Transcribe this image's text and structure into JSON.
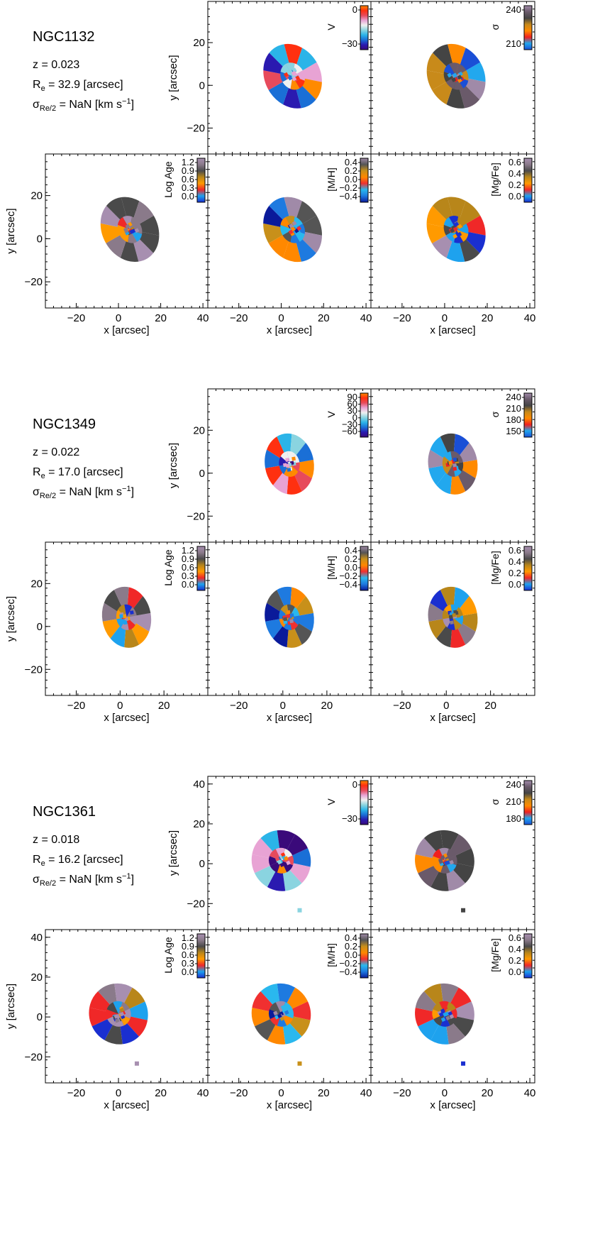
{
  "colors": {
    "frame": "#000000",
    "background": "#ffffff"
  },
  "colorbar_palettes": {
    "v": [
      "#3a0a7a",
      "#2a1ab0",
      "#1a6fd6",
      "#2bb4e8",
      "#8ad4e0",
      "#f0f0f0",
      "#e8a3d4",
      "#e74a5c",
      "#ff3010",
      "#ff8a00"
    ],
    "sigma": [
      "#1a4fd6",
      "#22a8ee",
      "#f02020",
      "#ff8a00",
      "#c88a1a",
      "#444444",
      "#6a5a6a",
      "#a08aa8"
    ],
    "age": [
      "#1a2fd0",
      "#1ea2ee",
      "#f02828",
      "#ff9a00",
      "#b8861a",
      "#4a4a4a",
      "#8a7a8a",
      "#a78fb0"
    ],
    "mh": [
      "#0a1a9a",
      "#1e7ae0",
      "#2ab8ee",
      "#f03030",
      "#ff8800",
      "#c8901a",
      "#555555",
      "#a08aa8"
    ],
    "mgfe": [
      "#1a2fd0",
      "#1ea2ee",
      "#f02828",
      "#ff9a00",
      "#b8861a",
      "#4a4a4a",
      "#8a7a8a",
      "#a78fb0"
    ]
  },
  "galaxies": [
    {
      "name": "NGC1132",
      "z": "z = 0.023",
      "re": "R",
      "re_sub": "e",
      "re_rest": " = 32.9 [arcsec]",
      "sigma": "σ",
      "sigma_sub": "Re/2",
      "sigma_rest": " = NaN [km s",
      "sigma_sup": "−1",
      "sigma_end": "]",
      "y_ticks": [
        "20",
        "0",
        "−20"
      ],
      "x_ticks": [
        "−20",
        "0",
        "20",
        "40"
      ],
      "x_label": "x [arcsec]",
      "y_label": "y [arcsec]",
      "cb": {
        "v": {
          "label": "V",
          "ticks": [
            "0",
            "−30"
          ]
        },
        "sigma": {
          "label": "σ",
          "ticks": [
            "240",
            "210"
          ]
        },
        "age": {
          "label": "Log Age",
          "ticks": [
            "1.2",
            "0.9",
            "0.6",
            "0.3",
            "0.0"
          ]
        },
        "mh": {
          "label": "[M/H]",
          "ticks": [
            "0.4",
            "0.2",
            "0.0",
            "−0.2",
            "−0.4"
          ]
        },
        "mgfe": {
          "label": "[Mg/Fe]",
          "ticks": [
            "0.6",
            "0.4",
            "0.2",
            "0.0"
          ]
        }
      }
    },
    {
      "name": "NGC1349",
      "z": "z = 0.022",
      "re": "R",
      "re_sub": "e",
      "re_rest": " = 17.0 [arcsec]",
      "sigma": "σ",
      "sigma_sub": "Re/2",
      "sigma_rest": " = NaN [km s",
      "sigma_sup": "−1",
      "sigma_end": "]",
      "y_ticks": [
        "20",
        "0",
        "−20"
      ],
      "x_ticks": [
        "−20",
        "0",
        "20"
      ],
      "x_label": "x [arcsec]",
      "y_label": "y [arcsec]",
      "cb": {
        "v": {
          "label": "V",
          "ticks": [
            "90",
            "60",
            "30",
            "0",
            "−30",
            "−60"
          ]
        },
        "sigma": {
          "label": "σ",
          "ticks": [
            "240",
            "210",
            "180",
            "150"
          ]
        },
        "age": {
          "label": "Log Age",
          "ticks": [
            "1.2",
            "0.9",
            "0.6",
            "0.3",
            "0.0"
          ]
        },
        "mh": {
          "label": "[M/H]",
          "ticks": [
            "0.4",
            "0.2",
            "0.0",
            "−0.2",
            "−0.4"
          ]
        },
        "mgfe": {
          "label": "[Mg/Fe]",
          "ticks": [
            "0.6",
            "0.4",
            "0.2",
            "0.0"
          ]
        }
      }
    },
    {
      "name": "NGC1361",
      "z": "z = 0.018",
      "re": "R",
      "re_sub": "e",
      "re_rest": " = 16.2 [arcsec]",
      "sigma": "σ",
      "sigma_sub": "Re/2",
      "sigma_rest": " = NaN [km s",
      "sigma_sup": "−1",
      "sigma_end": "]",
      "y_ticks": [
        "40",
        "20",
        "0",
        "−20"
      ],
      "x_ticks": [
        "−20",
        "0",
        "20",
        "40"
      ],
      "x_label": "x [arcsec]",
      "y_label": "y [arcsec]",
      "cb": {
        "v": {
          "label": "V",
          "ticks": [
            "0",
            "−30"
          ]
        },
        "sigma": {
          "label": "σ",
          "ticks": [
            "240",
            "210",
            "180"
          ]
        },
        "age": {
          "label": "Log Age",
          "ticks": [
            "1.2",
            "0.9",
            "0.6",
            "0.3",
            "0.0"
          ]
        },
        "mh": {
          "label": "[M/H]",
          "ticks": [
            "0.4",
            "0.2",
            "0.0",
            "−0.2",
            "−0.4"
          ]
        },
        "mgfe": {
          "label": "[Mg/Fe]",
          "ticks": [
            "0.6",
            "0.4",
            "0.2",
            "0.0"
          ]
        }
      }
    }
  ]
}
